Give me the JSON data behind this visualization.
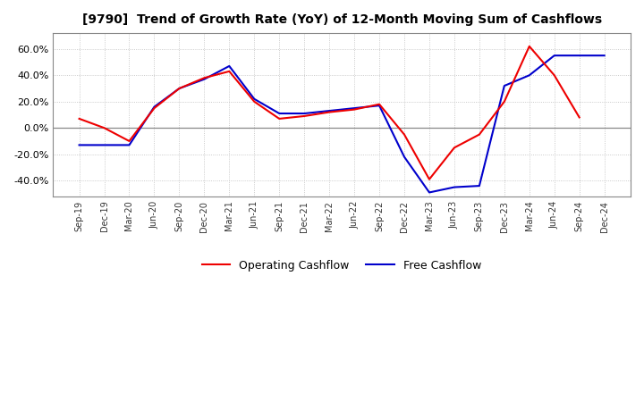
{
  "title": "[9790]  Trend of Growth Rate (YoY) of 12-Month Moving Sum of Cashflows",
  "x_labels": [
    "Sep-19",
    "Dec-19",
    "Mar-20",
    "Jun-20",
    "Sep-20",
    "Dec-20",
    "Mar-21",
    "Jun-21",
    "Sep-21",
    "Dec-21",
    "Mar-22",
    "Jun-22",
    "Sep-22",
    "Dec-22",
    "Mar-23",
    "Jun-23",
    "Sep-23",
    "Dec-23",
    "Mar-24",
    "Jun-24",
    "Sep-24",
    "Dec-24"
  ],
  "operating_cashflow": [
    0.07,
    0.0,
    -0.1,
    0.15,
    0.3,
    0.38,
    0.43,
    0.2,
    0.07,
    0.09,
    0.12,
    0.14,
    0.18,
    -0.05,
    -0.39,
    -0.15,
    -0.05,
    0.2,
    0.62,
    0.4,
    0.08,
    null
  ],
  "free_cashflow": [
    -0.13,
    -0.13,
    -0.13,
    0.16,
    0.3,
    0.37,
    0.47,
    0.22,
    0.11,
    0.11,
    0.13,
    0.15,
    0.17,
    -0.22,
    -0.49,
    -0.45,
    -0.44,
    0.32,
    0.4,
    0.55,
    0.55,
    0.55
  ],
  "operating_color": "#EE0000",
  "free_color": "#0000CC",
  "ylim": [
    -0.52,
    0.72
  ],
  "yticks": [
    -0.4,
    -0.2,
    0.0,
    0.2,
    0.4,
    0.6
  ],
  "background_color": "#FFFFFF",
  "grid_color": "#BBBBBB",
  "legend_labels": [
    "Operating Cashflow",
    "Free Cashflow"
  ]
}
